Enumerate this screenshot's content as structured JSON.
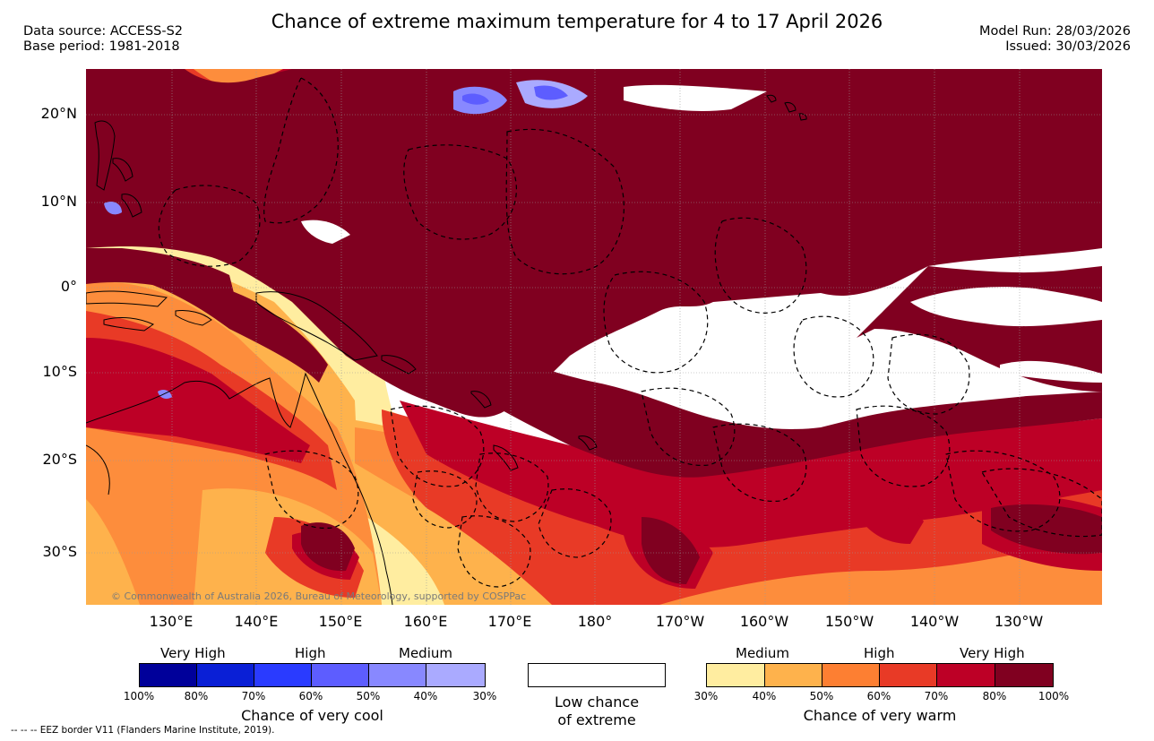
{
  "header": {
    "title": "Chance of extreme maximum temperature for 4 to 17 April 2026",
    "data_source": "Data source: ACCESS-S2",
    "base_period": "Base period: 1981-2018",
    "model_run": "Model Run: 28/03/2026",
    "issued": "Issued: 30/03/2026"
  },
  "map": {
    "lat_labels": [
      "20°N",
      "10°N",
      "0°",
      "10°S",
      "20°S",
      "30°S"
    ],
    "lon_labels": [
      "130°E",
      "140°E",
      "150°E",
      "160°E",
      "170°E",
      "180°",
      "170°W",
      "160°W",
      "150°W",
      "140°W",
      "130°W"
    ],
    "copyright": "© Commonwealth of Australia 2026, Bureau of Meteorology, supported by COSPPac",
    "colors": {
      "warm_30": "#ffeda0",
      "warm_40": "#feb24c",
      "warm_50": "#fd8d3c",
      "warm_60": "#e83a26",
      "warm_70": "#bd0026",
      "warm_80": "#800020",
      "cool_30": "#aaaaff",
      "cool_40": "#8080ff",
      "cool_50": "#5555ff",
      "cool_60": "#2a3bff",
      "cool_70": "#0a1fd6",
      "cool_80": "#00009a"
    }
  },
  "legend": {
    "cool": {
      "heads": [
        "Very High",
        "High",
        "Medium"
      ],
      "ticks": [
        "100%",
        "80%",
        "70%",
        "60%",
        "50%",
        "40%",
        "30%"
      ],
      "colors": [
        "#00009a",
        "#0a1fd6",
        "#2a3bff",
        "#5d5dff",
        "#8888ff",
        "#aaaaff"
      ],
      "caption": "Chance of very cool"
    },
    "low": {
      "caption_line1": "Low chance",
      "caption_line2": "of extreme"
    },
    "warm": {
      "heads": [
        "Medium",
        "High",
        "Very High"
      ],
      "ticks": [
        "30%",
        "40%",
        "50%",
        "60%",
        "70%",
        "80%",
        "100%"
      ],
      "colors": [
        "#ffeda0",
        "#feb24c",
        "#fd7f32",
        "#e83a26",
        "#bd0026",
        "#800020"
      ],
      "caption": "Chance of very warm"
    },
    "eez_note": "-- -- -- EEZ border V11 (Flanders Marine Institute, 2019)."
  }
}
